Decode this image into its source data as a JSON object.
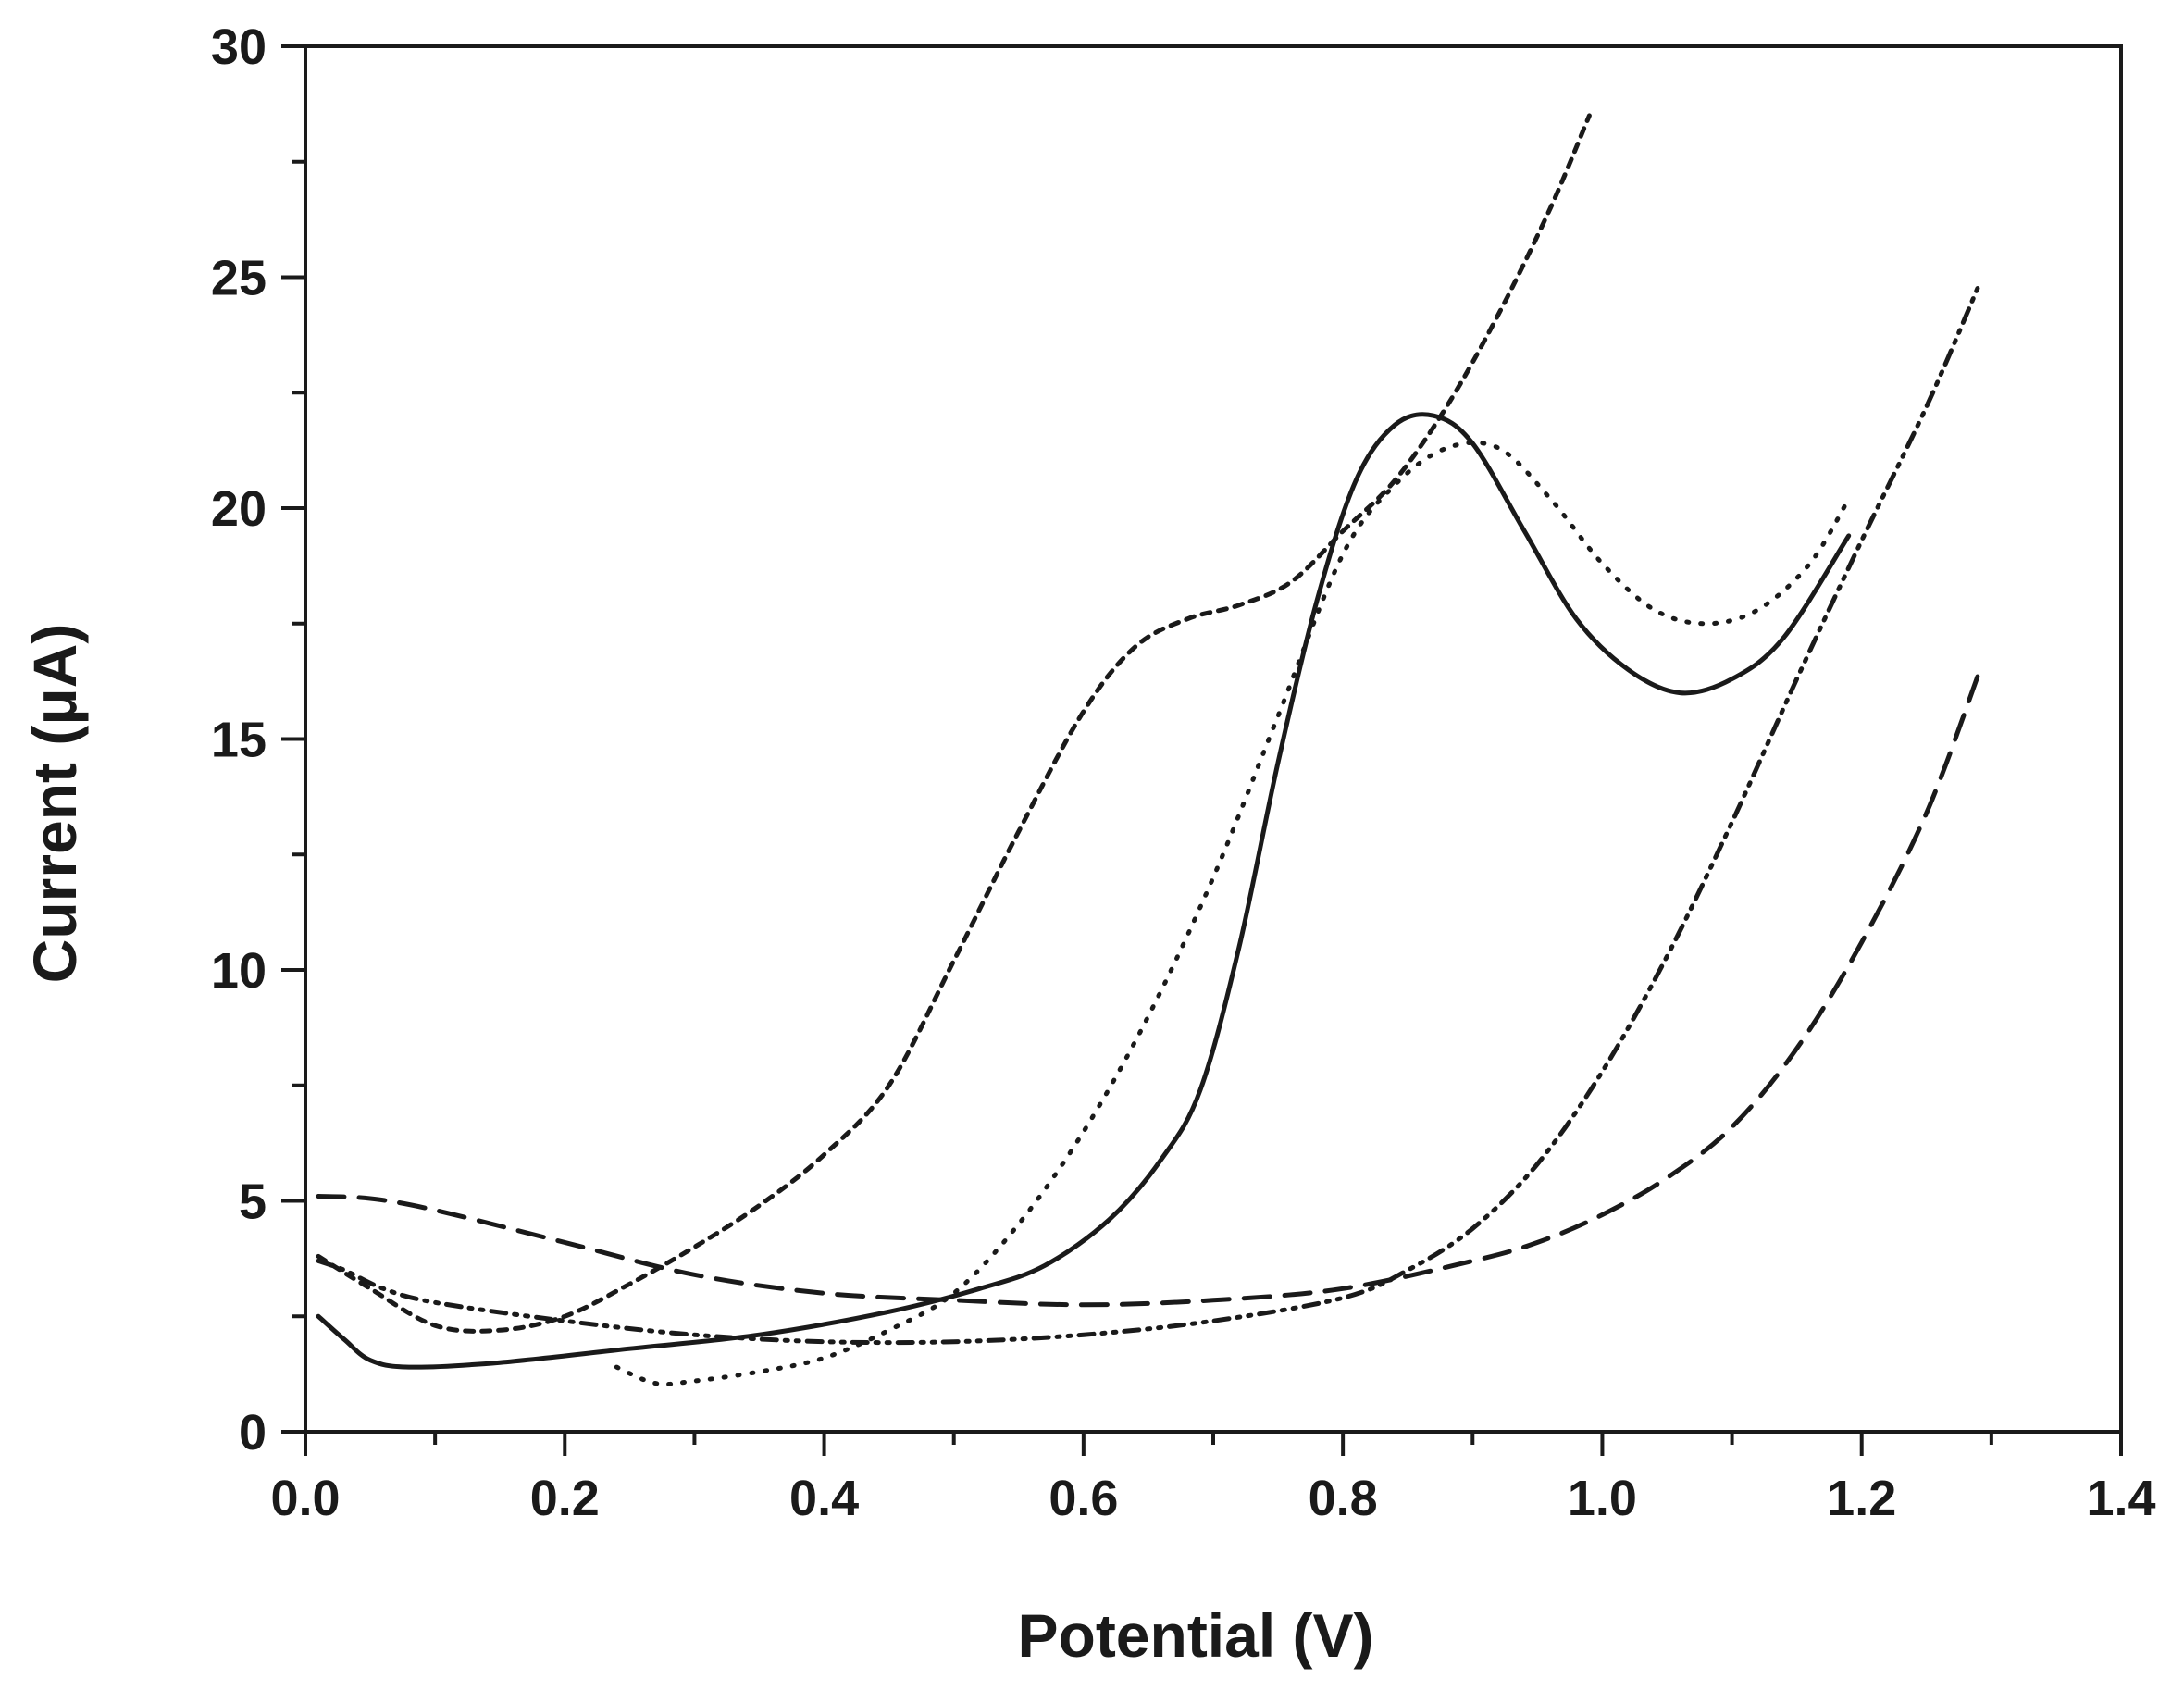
{
  "chart_data": {
    "type": "line",
    "title": "",
    "xlabel": "Potential (V)",
    "ylabel": "Current (μA)",
    "xlim": [
      0.0,
      1.4
    ],
    "ylim": [
      0,
      30
    ],
    "xticks": [
      "0.0",
      "0.2",
      "0.4",
      "0.6",
      "0.8",
      "1.0",
      "1.2",
      "1.4"
    ],
    "yticks": [
      "0",
      "5",
      "10",
      "15",
      "20",
      "25",
      "30"
    ],
    "grid": false,
    "legend": "none",
    "series": [
      {
        "name": "solid",
        "style": "solid",
        "x": [
          0.01,
          0.03,
          0.05,
          0.08,
          0.15,
          0.25,
          0.35,
          0.45,
          0.52,
          0.57,
          0.62,
          0.66,
          0.69,
          0.72,
          0.75,
          0.78,
          0.81,
          0.84,
          0.87,
          0.9,
          0.94,
          0.98,
          1.02,
          1.06,
          1.1,
          1.14,
          1.19
        ],
        "y": [
          2.5,
          2.0,
          1.55,
          1.4,
          1.5,
          1.8,
          2.1,
          2.6,
          3.1,
          3.6,
          4.6,
          5.9,
          7.4,
          10.5,
          14.5,
          18.0,
          20.6,
          21.8,
          22.0,
          21.4,
          19.5,
          17.6,
          16.5,
          16.0,
          16.3,
          17.2,
          19.4
        ]
      },
      {
        "name": "short-dash",
        "style": "short-dash",
        "x": [
          0.01,
          0.05,
          0.1,
          0.15,
          0.2,
          0.25,
          0.3,
          0.35,
          0.4,
          0.45,
          0.5,
          0.55,
          0.6,
          0.64,
          0.68,
          0.72,
          0.76,
          0.8,
          0.84,
          0.88,
          0.92,
          0.96,
          0.99
        ],
        "y": [
          3.8,
          3.1,
          2.3,
          2.2,
          2.5,
          3.2,
          4.0,
          4.9,
          6.0,
          7.5,
          10.2,
          13.0,
          15.6,
          17.0,
          17.6,
          17.9,
          18.4,
          19.5,
          20.6,
          22.2,
          24.2,
          26.5,
          28.5
        ]
      },
      {
        "name": "dotted",
        "style": "dotted",
        "x": [
          0.24,
          0.27,
          0.3,
          0.35,
          0.4,
          0.45,
          0.5,
          0.55,
          0.6,
          0.65,
          0.7,
          0.75,
          0.8,
          0.84,
          0.88,
          0.92,
          0.96,
          1.0,
          1.04,
          1.08,
          1.12,
          1.16,
          1.19
        ],
        "y": [
          1.4,
          1.05,
          1.1,
          1.3,
          1.6,
          2.2,
          3.0,
          4.5,
          6.5,
          9.0,
          12.0,
          15.5,
          19.0,
          20.5,
          21.3,
          21.3,
          20.2,
          18.8,
          17.8,
          17.5,
          17.8,
          18.8,
          20.2
        ]
      },
      {
        "name": "dash-dot-dot",
        "style": "dash-dot-dot",
        "x": [
          0.01,
          0.03,
          0.06,
          0.1,
          0.2,
          0.3,
          0.4,
          0.5,
          0.6,
          0.7,
          0.8,
          0.85,
          0.9,
          0.95,
          1.0,
          1.05,
          1.1,
          1.15,
          1.2,
          1.25,
          1.29
        ],
        "y": [
          3.7,
          3.5,
          3.1,
          2.8,
          2.4,
          2.1,
          1.95,
          1.95,
          2.1,
          2.4,
          2.9,
          3.5,
          4.4,
          5.8,
          7.8,
          10.3,
          13.2,
          16.3,
          19.3,
          22.2,
          24.8
        ]
      },
      {
        "name": "long-dash",
        "style": "long-dash",
        "x": [
          0.01,
          0.05,
          0.1,
          0.2,
          0.3,
          0.4,
          0.5,
          0.6,
          0.7,
          0.8,
          0.9,
          0.95,
          1.0,
          1.05,
          1.1,
          1.15,
          1.2,
          1.25,
          1.29
        ],
        "y": [
          5.1,
          5.05,
          4.8,
          4.1,
          3.4,
          3.0,
          2.85,
          2.75,
          2.85,
          3.1,
          3.7,
          4.1,
          4.7,
          5.5,
          6.6,
          8.3,
          10.6,
          13.4,
          16.4
        ]
      }
    ]
  }
}
